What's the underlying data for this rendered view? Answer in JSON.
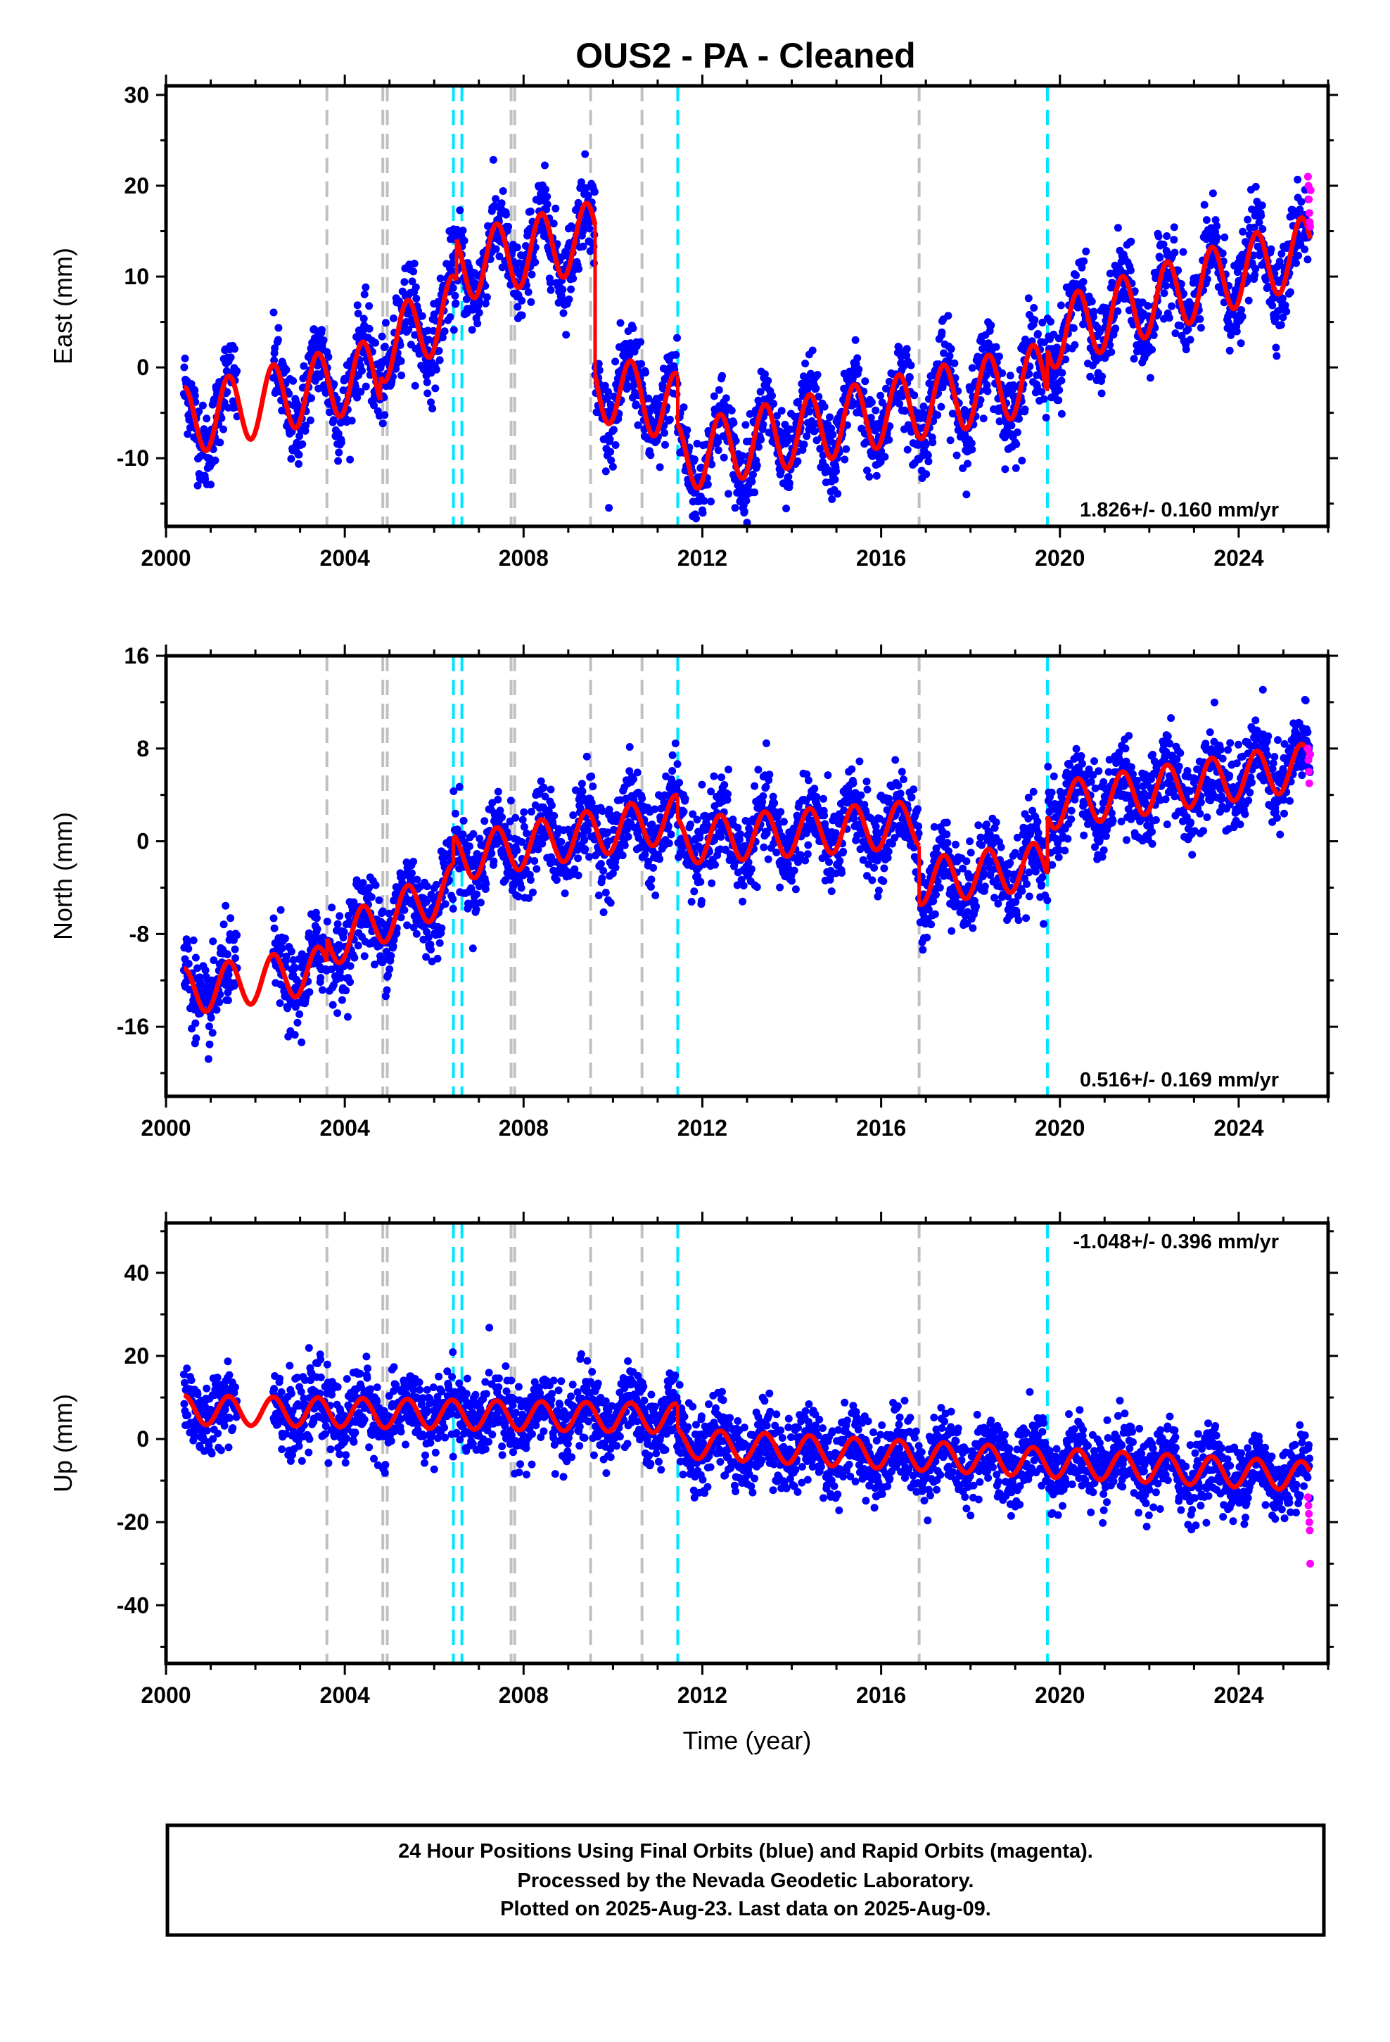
{
  "title": "OUS2  - PA - Cleaned",
  "colors": {
    "final_orbits": "#0000ff",
    "rapid_orbits": "#ff00ff",
    "model": "#ff0000",
    "equipment_change": "#c0c0c0",
    "earthquake": "#00e5ff"
  },
  "x_axis": {
    "label": "Time (year)",
    "range": [
      2000,
      2026
    ],
    "ticks": [
      "2000",
      "2004",
      "2008",
      "2012",
      "2016",
      "2020",
      "2024"
    ]
  },
  "event_lines": {
    "equipment_change_years": [
      2003.6,
      2004.85,
      2004.95,
      2007.72,
      2007.8,
      2009.5,
      2010.65,
      2016.85
    ],
    "earthquake_years": [
      2006.43,
      2006.62,
      2011.45,
      2019.72
    ]
  },
  "footer": {
    "line1": "24 Hour Positions Using Final Orbits (blue) and Rapid Orbits (magenta).",
    "line2": "Processed by the Nevada Geodetic Laboratory.",
    "line3": "Plotted on 2025-Aug-23. Last data on 2025-Aug-09."
  },
  "chart_data": [
    {
      "type": "scatter",
      "component": "east",
      "ylabel": "East (mm)",
      "ylim": [
        -17.5,
        31
      ],
      "yticks": [
        -10,
        0,
        10,
        20,
        30
      ],
      "rate_text": "1.826+/- 0.160 mm/yr",
      "rate_position": "bottom-right",
      "data_start": 2000.4,
      "data_end": 2025.6,
      "gap": [
        2001.6,
        2002.4
      ],
      "seasonal_amplitude": 3.8,
      "scatter_sigma": 2.3,
      "model_segments": [
        {
          "start": 2000.4,
          "end": 2004.8,
          "offset_start": -6.0,
          "offset_end": -0.5
        },
        {
          "start": 2004.8,
          "end": 2006.5,
          "offset_start": 2.0,
          "offset_end": 6.5
        },
        {
          "start": 2006.5,
          "end": 2009.6,
          "offset_start": 11.0,
          "offset_end": 14.5
        },
        {
          "start": 2009.6,
          "end": 2011.45,
          "offset_start": -2.0,
          "offset_end": -4.5
        },
        {
          "start": 2011.45,
          "end": 2019.72,
          "offset_start": -10.0,
          "offset_end": -1.0
        },
        {
          "start": 2019.72,
          "end": 2025.6,
          "offset_start": 3.5,
          "offset_end": 13.0
        }
      ],
      "rapid_points": [
        [
          2025.55,
          21
        ],
        [
          2025.56,
          20
        ],
        [
          2025.57,
          18.5
        ],
        [
          2025.58,
          17
        ],
        [
          2025.59,
          16
        ],
        [
          2025.6,
          15.5
        ],
        [
          2025.61,
          19.5
        ]
      ]
    },
    {
      "type": "scatter",
      "component": "north",
      "ylabel": "North (mm)",
      "ylim": [
        -22,
        16
      ],
      "yticks": [
        -16,
        -8,
        0,
        8,
        16
      ],
      "rate_text": "0.516+/- 0.169 mm/yr",
      "rate_position": "bottom-right",
      "data_start": 2000.4,
      "data_end": 2025.6,
      "gap": [
        2001.6,
        2002.4
      ],
      "seasonal_amplitude": 2.0,
      "scatter_sigma": 1.8,
      "model_segments": [
        {
          "start": 2000.4,
          "end": 2003.6,
          "offset_start": -13.0,
          "offset_end": -11.0
        },
        {
          "start": 2003.6,
          "end": 2006.43,
          "offset_start": -9.0,
          "offset_end": -4.0
        },
        {
          "start": 2006.43,
          "end": 2011.45,
          "offset_start": -1.5,
          "offset_end": 2.0
        },
        {
          "start": 2011.45,
          "end": 2016.85,
          "offset_start": 0.0,
          "offset_end": 1.5
        },
        {
          "start": 2016.85,
          "end": 2019.72,
          "offset_start": -3.5,
          "offset_end": -2.0
        },
        {
          "start": 2019.72,
          "end": 2025.6,
          "offset_start": 3.0,
          "offset_end": 6.5
        }
      ],
      "rapid_points": [
        [
          2025.55,
          8
        ],
        [
          2025.56,
          7
        ],
        [
          2025.57,
          6
        ],
        [
          2025.58,
          5
        ],
        [
          2025.6,
          7.5
        ]
      ]
    },
    {
      "type": "scatter",
      "component": "up",
      "ylabel": "Up (mm)",
      "ylim": [
        -54,
        52
      ],
      "yticks": [
        -40,
        -20,
        0,
        20,
        40
      ],
      "rate_text": "-1.048+/- 0.396 mm/yr",
      "rate_position": "top-right",
      "data_start": 2000.4,
      "data_end": 2025.6,
      "gap": [
        2001.6,
        2002.4
      ],
      "seasonal_amplitude": 3.5,
      "scatter_sigma": 4.5,
      "model_segments": [
        {
          "start": 2000.4,
          "end": 2011.45,
          "offset_start": 7.0,
          "offset_end": 5.0
        },
        {
          "start": 2011.45,
          "end": 2025.6,
          "offset_start": -1.0,
          "offset_end": -9.0
        }
      ],
      "rapid_points": [
        [
          2025.55,
          -14
        ],
        [
          2025.56,
          -16
        ],
        [
          2025.57,
          -18
        ],
        [
          2025.58,
          -20
        ],
        [
          2025.59,
          -22
        ],
        [
          2025.6,
          -30
        ]
      ]
    }
  ]
}
